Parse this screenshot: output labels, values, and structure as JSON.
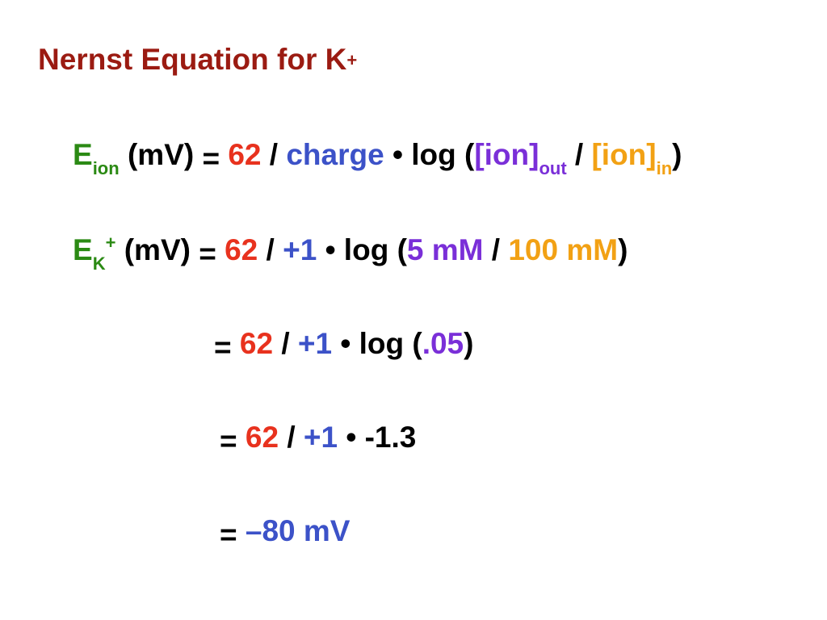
{
  "title": {
    "text": "Nernst Equation for K",
    "superscript": "+"
  },
  "colors": {
    "title": "#9b1b12",
    "potential_symbol": "#2b8a14",
    "constant": "#e8321e",
    "charge": "#3c52c8",
    "ion_out": "#7a2fd8",
    "ion_in": "#f2a114",
    "text": "#000000"
  },
  "general_equation": {
    "e_symbol": "E",
    "e_subscript": "ion",
    "units": " (mV) ",
    "equals": "=",
    "constant": " 62",
    "divide": " / ",
    "charge": "charge",
    "log": " • log (",
    "ion_out": "[ion]",
    "ion_out_subscript": "out",
    "divide2": " / ",
    "ion_in": "[ion]",
    "ion_in_subscript": "in",
    "close": ")"
  },
  "k_equation": {
    "e_symbol": "E",
    "e_subscript": "K",
    "e_superscript": "+",
    "units": " (mV) ",
    "equals": "=",
    "constant": " 62",
    "divide": " / ",
    "charge": "+1",
    "log": " • log (",
    "conc_out": "5 mM",
    "divide2": " / ",
    "conc_in": "100 mM",
    "close": ")"
  },
  "step_1": {
    "equals": "=",
    "constant": " 62",
    "divide": " / ",
    "charge": "+1",
    "log": " • log (",
    "ratio": ".05",
    "close": ")"
  },
  "step_2": {
    "equals": "=",
    "constant": " 62",
    "divide": " / ",
    "charge": "+1",
    "rest": " • -1.3"
  },
  "result": {
    "equals": "=",
    "value": " –80 mV"
  }
}
